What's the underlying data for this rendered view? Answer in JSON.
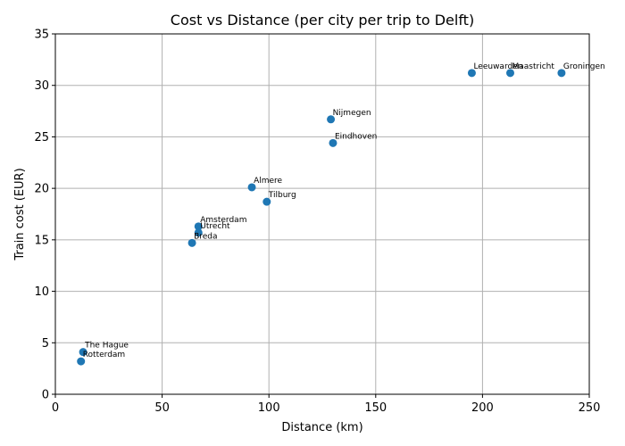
{
  "chart_data": {
    "type": "scatter",
    "title": "Cost vs Distance (per city per trip to Delft)",
    "xlabel": "Distance (km)",
    "ylabel": "Train cost (EUR)",
    "xlim": [
      0,
      250
    ],
    "ylim": [
      0,
      35
    ],
    "xticks": [
      0,
      50,
      100,
      150,
      200,
      250
    ],
    "yticks": [
      0,
      5,
      10,
      15,
      20,
      25,
      30,
      35
    ],
    "grid": true,
    "color": "#1f77b4",
    "points": [
      {
        "label": "The Hague",
        "x": 13,
        "y": 4.1
      },
      {
        "label": "Rotterdam",
        "x": 12,
        "y": 3.2
      },
      {
        "label": "Amsterdam",
        "x": 67,
        "y": 16.3
      },
      {
        "label": "Utrecht",
        "x": 67,
        "y": 15.7
      },
      {
        "label": "Breda",
        "x": 64,
        "y": 14.7
      },
      {
        "label": "Almere",
        "x": 92,
        "y": 20.1
      },
      {
        "label": "Tilburg",
        "x": 99,
        "y": 18.7
      },
      {
        "label": "Nijmegen",
        "x": 129,
        "y": 26.7
      },
      {
        "label": "Eindhoven",
        "x": 130,
        "y": 24.4
      },
      {
        "label": "Leeuwarden",
        "x": 195,
        "y": 31.2
      },
      {
        "label": "Maastricht",
        "x": 213,
        "y": 31.2
      },
      {
        "label": "Groningen",
        "x": 237,
        "y": 31.2
      }
    ]
  }
}
